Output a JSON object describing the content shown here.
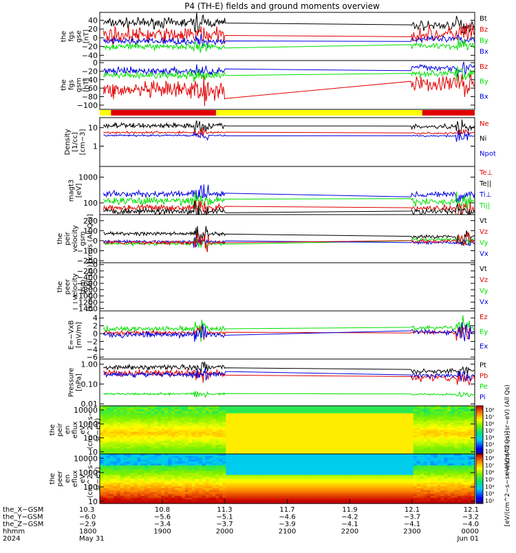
{
  "title": "P4 (TH-E) fields and ground moments overview",
  "colors": {
    "black": "#000000",
    "red": "#e00000",
    "green": "#00e000",
    "blue": "#0000e0",
    "yellow": "#ffff00",
    "bar_red": "#e00000"
  },
  "chart_data": [
    {
      "type": "line",
      "name": "fgs-gse",
      "ylabel": "the\nfgs\ngse\n[nT]",
      "ylim": [
        -52,
        58
      ],
      "log": false,
      "ticks": [
        "40",
        "20",
        "0",
        "−20",
        "−40"
      ],
      "tickvals": [
        40,
        20,
        0,
        -20,
        -40
      ],
      "legend": [
        {
          "text": "Bt",
          "color": "black"
        },
        {
          "text": "Bz",
          "color": "red"
        },
        {
          "text": "By",
          "color": "green"
        },
        {
          "text": "Bx",
          "color": "blue"
        }
      ],
      "series": [
        {
          "color": "black",
          "a": 34,
          "b": 28,
          "noise": 9,
          "spike": 15
        },
        {
          "color": "red",
          "a": 6,
          "b": 8,
          "noise": 14,
          "spike": 20
        },
        {
          "color": "blue",
          "a": -8,
          "b": -4,
          "noise": 6,
          "spike": 10
        },
        {
          "color": "green",
          "a": -20,
          "b": -18,
          "noise": 6,
          "spike": 10
        }
      ]
    },
    {
      "type": "line",
      "name": "fgs-gsm",
      "ylabel": "the\nfgs\ngsm\n[nT]",
      "ylim": [
        -110,
        5
      ],
      "log": false,
      "ticks": [
        "0",
        "−20",
        "−40",
        "−60",
        "−80",
        "−100"
      ],
      "tickvals": [
        0,
        -20,
        -40,
        -60,
        -80,
        -100
      ],
      "legend": [
        {
          "text": "Bz",
          "color": "red"
        },
        {
          "text": "By",
          "color": "green"
        },
        {
          "text": "Bx",
          "color": "blue"
        }
      ],
      "series": [
        {
          "color": "blue",
          "a": -20,
          "b": -12,
          "noise": 7,
          "spike": 12
        },
        {
          "color": "green",
          "a": -30,
          "b": -25,
          "noise": 7,
          "spike": 12
        },
        {
          "color": "red",
          "a": -65,
          "b": -50,
          "noise": 16,
          "spike": 25
        }
      ]
    },
    {
      "type": "line",
      "name": "density",
      "ylabel": "Density\n[1/cc]\n[cm−3]",
      "ylim": [
        0.08,
        35
      ],
      "log": true,
      "ticks": [
        "10",
        "1"
      ],
      "tickvals": [
        10,
        1
      ],
      "legend": [
        {
          "text": "Ne",
          "color": "red"
        },
        {
          "text": "Ni",
          "color": "black"
        },
        {
          "text": "Npot",
          "color": "blue"
        }
      ],
      "series": [
        {
          "color": "black",
          "a": 13,
          "b": 11,
          "noise": 0.12,
          "spike": 0.3
        },
        {
          "color": "red",
          "a": 5.5,
          "b": 5,
          "noise": 0.05,
          "spike": 0.2
        },
        {
          "color": "blue",
          "a": 3.8,
          "b": 3.6,
          "noise": 0.04,
          "spike": 0.2
        }
      ]
    },
    {
      "type": "line",
      "name": "temperature",
      "ylabel": "magt3\n[eV]",
      "ylim": [
        35,
        2600
      ],
      "log": true,
      "ticks": [
        "1000",
        "100"
      ],
      "tickvals": [
        1000,
        100
      ],
      "legend": [
        {
          "text": "Te⊥",
          "color": "red"
        },
        {
          "text": "Te||",
          "color": "black"
        },
        {
          "text": "Ti⊥",
          "color": "blue"
        },
        {
          "text": "Ti||",
          "color": "green"
        }
      ],
      "series": [
        {
          "color": "blue",
          "a": 220,
          "b": 210,
          "noise": 0.1,
          "spike": 0.3
        },
        {
          "color": "green",
          "a": 120,
          "b": 110,
          "noise": 0.12,
          "spike": 0.3
        },
        {
          "color": "red",
          "a": 65,
          "b": 60,
          "noise": 0.1,
          "spike": 0.3
        },
        {
          "color": "black",
          "a": 48,
          "b": 45,
          "noise": 0.1,
          "spike": 0.3
        }
      ]
    },
    {
      "type": "line",
      "name": "peir-velocity",
      "ylabel": "the\npeir\nvelocity\ngsm\n[km/s (All Qs)]",
      "ylim": [
        -220,
        260
      ],
      "log": false,
      "ticks": [
        "200",
        "100",
        "0",
        "−100",
        "−200"
      ],
      "tickvals": [
        200,
        100,
        0,
        -100,
        -200
      ],
      "legend": [
        {
          "text": "Vt",
          "color": "black"
        },
        {
          "text": "Vz",
          "color": "red"
        },
        {
          "text": "Vy",
          "color": "green"
        },
        {
          "text": "Vx",
          "color": "blue"
        }
      ],
      "series": [
        {
          "color": "black",
          "a": 70,
          "b": 40,
          "noise": 15,
          "spike": 80
        },
        {
          "color": "green",
          "a": -30,
          "b": 10,
          "noise": 12,
          "spike": 40
        },
        {
          "color": "blue",
          "a": -10,
          "b": -20,
          "noise": 12,
          "spike": 40
        },
        {
          "color": "red",
          "a": -20,
          "b": -5,
          "noise": 15,
          "spike": 70
        }
      ]
    },
    {
      "type": "empty",
      "name": "peer-velocity",
      "ylabel": "the\npeer\nvelocity\ngsm\n[km/s (All Qs)]",
      "ylim": [
        -1480,
        60
      ],
      "log": false,
      "ticks": [
        "0",
        "−200",
        "−400",
        "−600",
        "−800",
        "−1000",
        "−1200",
        "−1400"
      ],
      "tickvals": [
        0,
        -200,
        -400,
        -600,
        -800,
        -1000,
        -1200,
        -1400
      ],
      "legend": [
        {
          "text": "Vt",
          "color": "black"
        },
        {
          "text": "Vz",
          "color": "red"
        },
        {
          "text": "Vy",
          "color": "green"
        },
        {
          "text": "Vx",
          "color": "blue"
        }
      ],
      "series": []
    },
    {
      "type": "line",
      "name": "electric-field",
      "ylabel": "E=−VxB\n[mV/m]",
      "ylim": [
        -6.5,
        5.8
      ],
      "log": false,
      "ticks": [
        "4",
        "2",
        "0",
        "−2",
        "−4",
        "−6"
      ],
      "tickvals": [
        4,
        2,
        0,
        -2,
        -4,
        -6
      ],
      "legend": [
        {
          "text": "Ez",
          "color": "red"
        },
        {
          "text": "Ey",
          "color": "green"
        },
        {
          "text": "Ex",
          "color": "blue"
        }
      ],
      "series": [
        {
          "color": "green",
          "a": 1.2,
          "b": 1.5,
          "noise": 0.5,
          "spike": 2
        },
        {
          "color": "red",
          "a": 0.2,
          "b": 0.4,
          "noise": 0.4,
          "spike": 1.5
        },
        {
          "color": "blue",
          "a": -0.3,
          "b": 0.5,
          "noise": 0.6,
          "spike": 2.5
        }
      ]
    },
    {
      "type": "line",
      "name": "pressure",
      "ylabel": "Pressure\n[nPa]",
      "ylim": [
        0.008,
        1.8
      ],
      "log": true,
      "ticks": [
        "1.00",
        "0.10",
        "0.01"
      ],
      "tickvals": [
        1,
        0.1,
        0.01
      ],
      "legend": [
        {
          "text": "Pt",
          "color": "black"
        },
        {
          "text": "Pb",
          "color": "red"
        },
        {
          "text": "Pe",
          "color": "green"
        },
        {
          "text": "Pi",
          "color": "blue"
        }
      ],
      "series": [
        {
          "color": "black",
          "a": 0.7,
          "b": 0.45,
          "noise": 0.1,
          "spike": 0.25
        },
        {
          "color": "red",
          "a": 0.35,
          "b": 0.2,
          "noise": 0.14,
          "spike": 0.3
        },
        {
          "color": "blue",
          "a": 0.3,
          "b": 0.28,
          "noise": 0.1,
          "spike": 0.25
        },
        {
          "color": "green",
          "a": 0.032,
          "b": 0.03,
          "noise": 0.04,
          "spike": 0.15
        }
      ]
    },
    {
      "type": "heatmap",
      "name": "peir-energy-spectrogram",
      "ylabel": "the\npeir\nen\neflux\neV\n(cm^2−s−\nsr−eV)",
      "ylim": [
        7,
        20000
      ],
      "log": true,
      "ticks": [
        "10000",
        "1000",
        "100",
        "10"
      ],
      "tickvals": [
        10000,
        1000,
        100,
        10
      ],
      "colorbar_ticks": [
        "10⁸",
        "10⁷",
        "10⁶",
        "10⁵",
        "10⁴",
        "10³",
        "10²"
      ],
      "colorbar_label": "eV/(cm^2−s−sr−eV) (All Qs)"
    },
    {
      "type": "heatmap",
      "name": "peer-energy-spectrogram",
      "ylabel": "the\npeer\nen\neflux\neV\n(cm^2−s−\nsr−eV)",
      "ylim": [
        7,
        20000
      ],
      "log": true,
      "ticks": [
        "10000",
        "1000",
        "100",
        "10"
      ],
      "tickvals": [
        10000,
        1000,
        100,
        10
      ],
      "colorbar_ticks": [
        "10⁸",
        "10⁷",
        "10⁶",
        "10⁵",
        "10⁴",
        "10³",
        "10²"
      ],
      "colorbar_label": "[eV/(cm^2−s−sr−eV) (All Qs)]"
    }
  ],
  "status_bar": {
    "segments": [
      {
        "from": 0.0,
        "to": 0.03,
        "color": "yellow"
      },
      {
        "from": 0.03,
        "to": 0.31,
        "color": "red"
      },
      {
        "from": 0.31,
        "to": 0.86,
        "color": "yellow"
      },
      {
        "from": 0.86,
        "to": 1.0,
        "color": "red"
      }
    ]
  },
  "x_axis": {
    "row_labels": [
      "the_X−GSM",
      "the_Y−GSM",
      "the_Z−GSM",
      "hhmm",
      "2024"
    ],
    "columns": [
      {
        "frac": 0.0,
        "values": [
          "10.3",
          "−6.0",
          "−2.9",
          "1800",
          "May 31"
        ]
      },
      {
        "frac": 0.167,
        "values": [
          "10.8",
          "−5.6",
          "−3.4",
          "1900",
          ""
        ]
      },
      {
        "frac": 0.333,
        "values": [
          "11.3",
          "−5.1",
          "−3.7",
          "2000",
          ""
        ]
      },
      {
        "frac": 0.5,
        "values": [
          "11.7",
          "−4.6",
          "−3.9",
          "2100",
          ""
        ]
      },
      {
        "frac": 0.667,
        "values": [
          "11.9",
          "−4.2",
          "−4.1",
          "2200",
          ""
        ]
      },
      {
        "frac": 0.833,
        "values": [
          "12.1",
          "−3.7",
          "−4.1",
          "2300",
          ""
        ]
      },
      {
        "frac": 1.0,
        "values": [
          "12.1",
          "−3.2",
          "−4.0",
          "0000",
          "Jun 01"
        ]
      }
    ]
  },
  "data_gap": {
    "start": 0.335,
    "end": 0.83
  }
}
